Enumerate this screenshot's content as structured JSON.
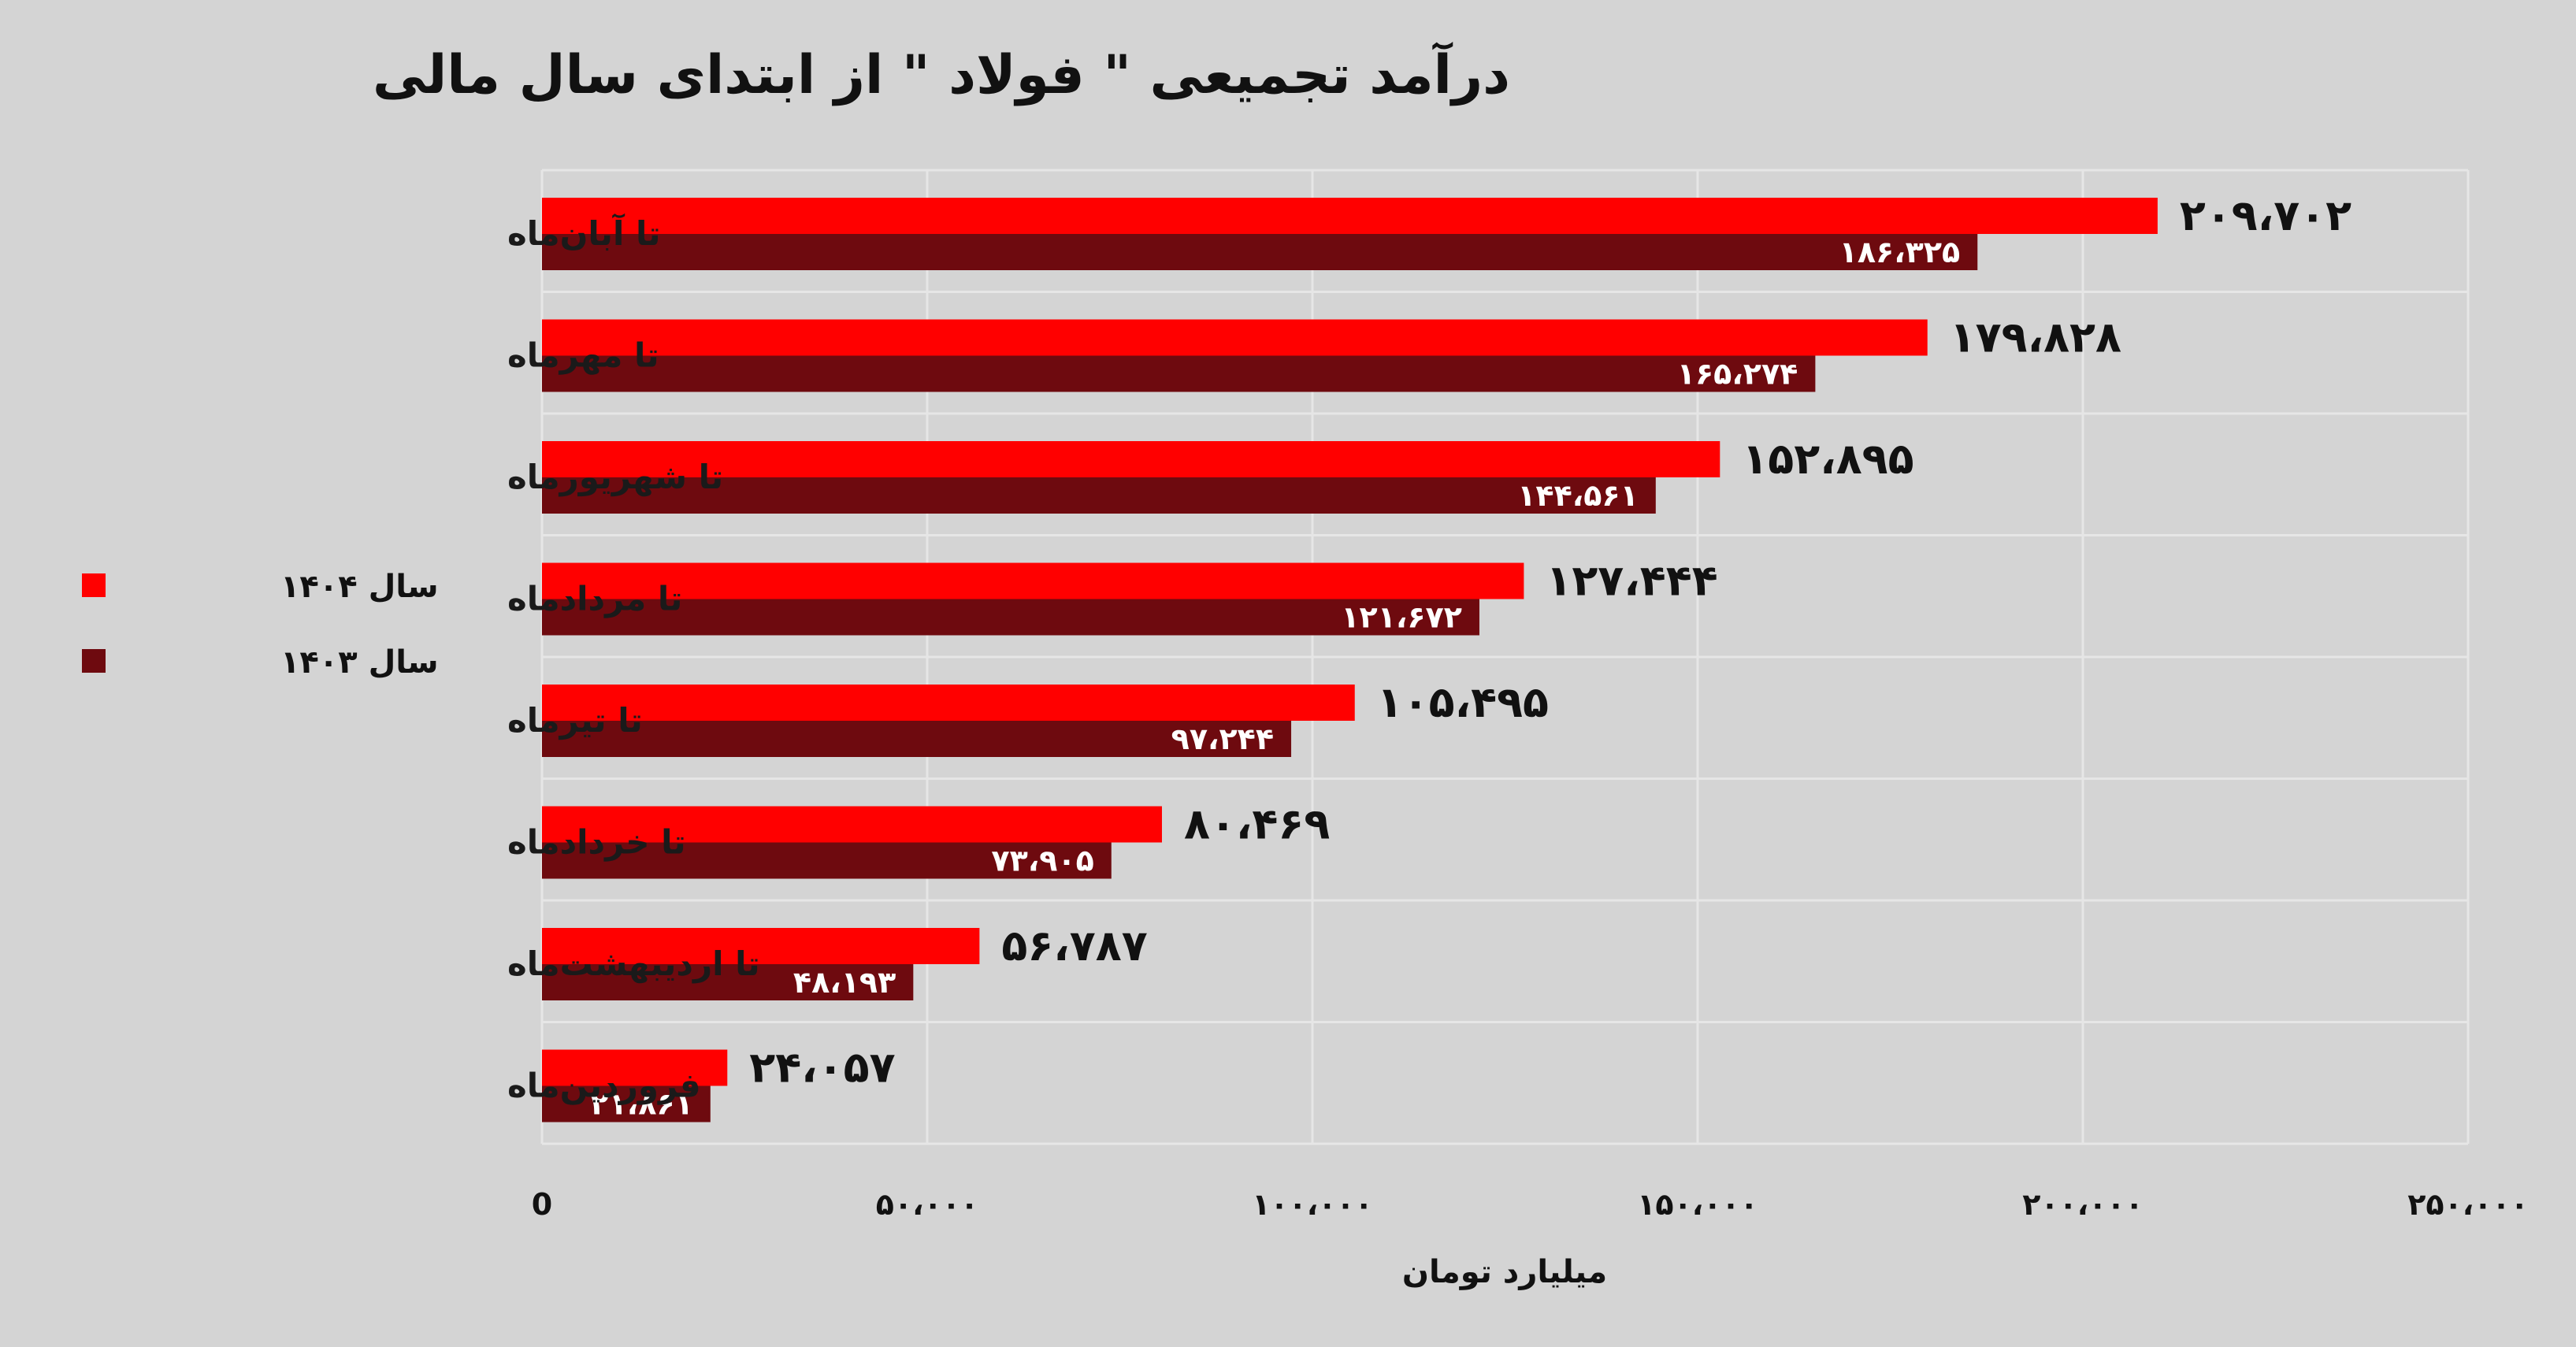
{
  "chart_data": {
    "type": "bar",
    "orientation": "horizontal",
    "title": "درآمد تجمیعی \" فولاد \" از ابتدای سال مالی",
    "xlabel": "میلیارد تومان",
    "ylabel": "",
    "xlim": [
      0,
      250000
    ],
    "xticks": [
      0,
      50000,
      100000,
      150000,
      200000,
      250000
    ],
    "xtick_labels": [
      "0",
      "۵۰،۰۰۰",
      "۱۰۰،۰۰۰",
      "۱۵۰،۰۰۰",
      "۲۰۰،۰۰۰",
      "۲۵۰،۰۰۰"
    ],
    "grid": true,
    "legend_position": "left",
    "categories": [
      "تا آبان‌ماه",
      "تا مهرماه",
      "تا شهریورماه",
      "تا مردادماه",
      "تا تیرماه",
      "تا خردادماه",
      "تا اردیبهشت‌ماه",
      "فروردین‌ماه"
    ],
    "series": [
      {
        "name": "سال ۱۴۰۴",
        "color": "#ff0000",
        "values": [
          209702,
          179828,
          152895,
          127444,
          105495,
          80469,
          56787,
          24057
        ],
        "labels": [
          "۲۰۹،۷۰۲",
          "۱۷۹،۸۲۸",
          "۱۵۲،۸۹۵",
          "۱۲۷،۴۴۴",
          "۱۰۵،۴۹۵",
          "۸۰،۴۶۹",
          "۵۶،۷۸۷",
          "۲۴،۰۵۷"
        ]
      },
      {
        "name": "سال ۱۴۰۳",
        "color": "#6e0a0f",
        "values": [
          186325,
          165274,
          144561,
          121672,
          97244,
          73905,
          48193,
          21861
        ],
        "labels": [
          "۱۸۶،۳۲۵",
          "۱۶۵،۲۷۴",
          "۱۴۴،۵۶۱",
          "۱۲۱،۶۷۲",
          "۹۷،۲۴۴",
          "۷۳،۹۰۵",
          "۴۸،۱۹۳",
          "۲۱،۸۶۱"
        ]
      }
    ]
  }
}
